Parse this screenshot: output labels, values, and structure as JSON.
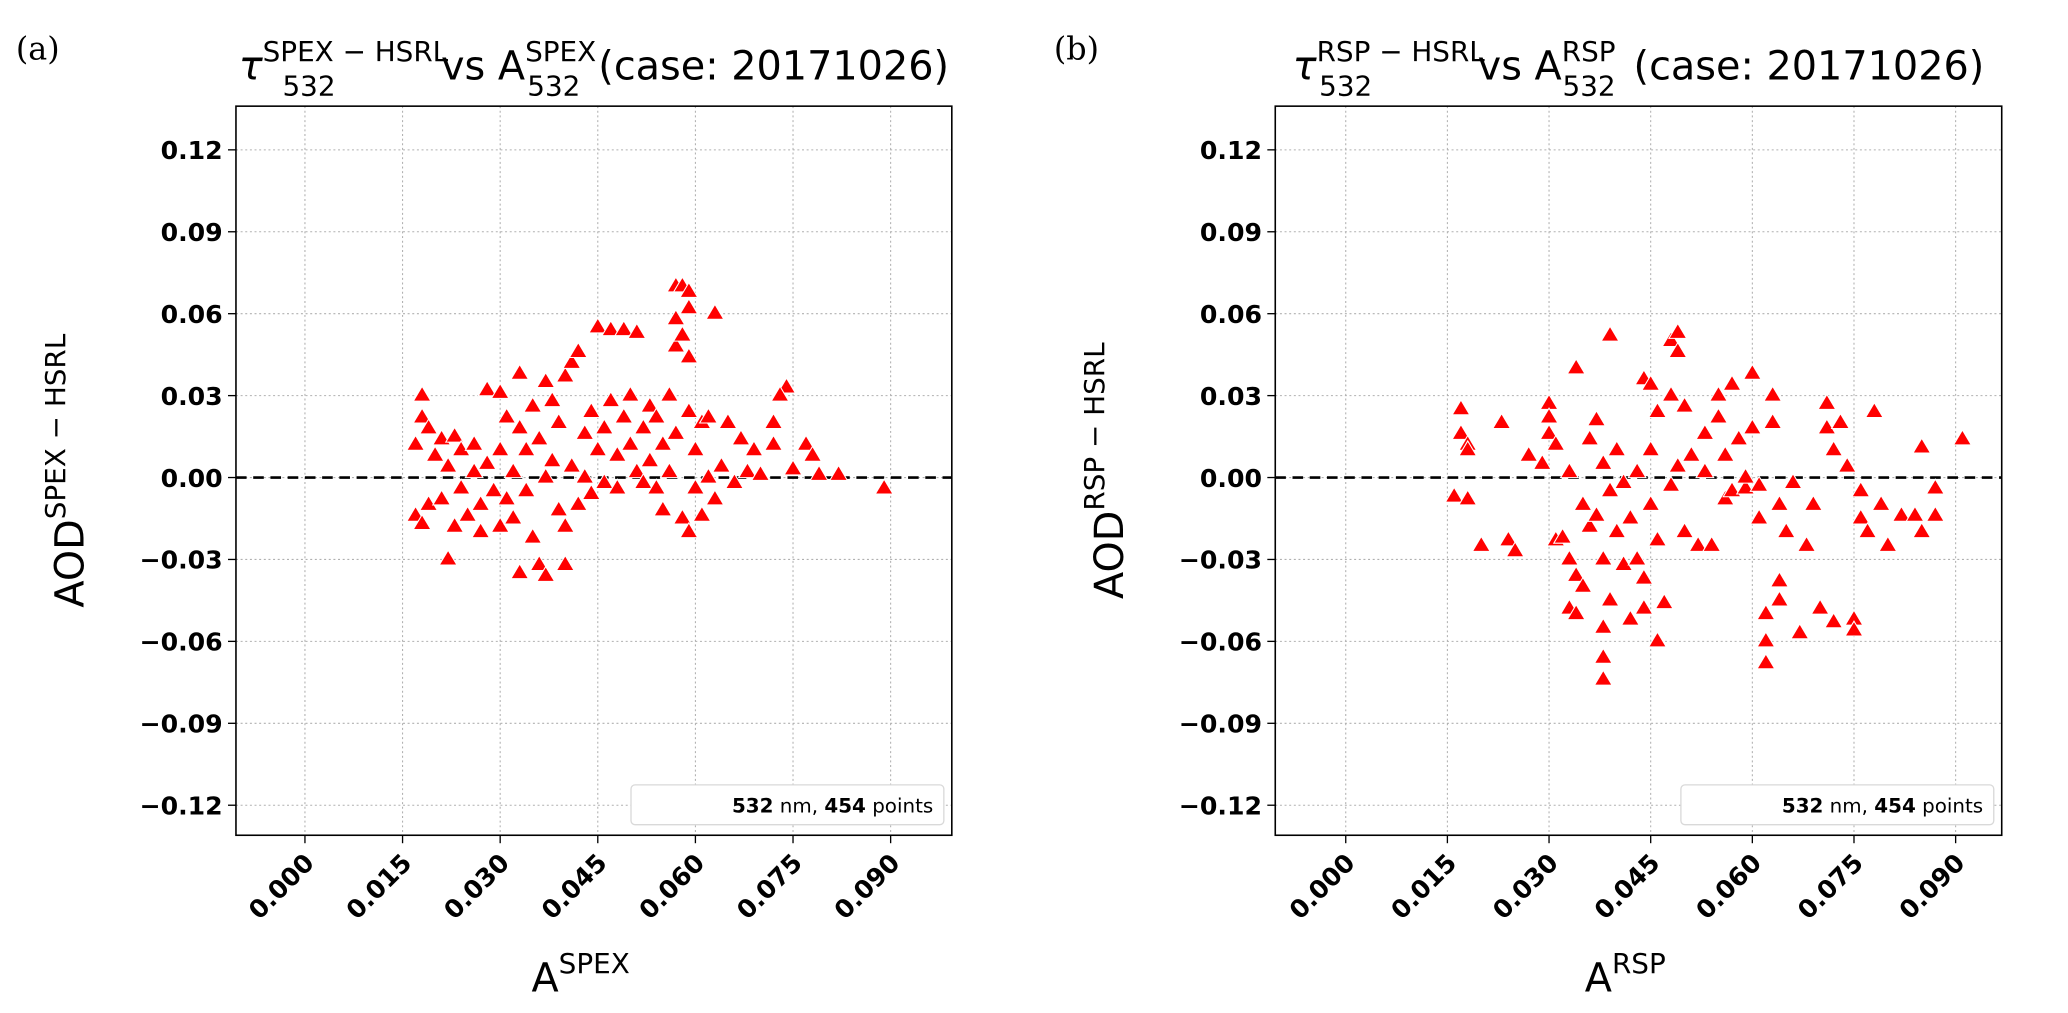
{
  "chart_data": [
    {
      "type": "scatter",
      "panel_label": "(a)",
      "title": {
        "tau": "τ",
        "tau_sub": "532",
        "tau_sup": "SPEX − HSRL",
        "vs": " vs A",
        "a_sub": "532",
        "a_sup": "SPEX",
        "case": " (case: 20171026)"
      },
      "xlabel": {
        "base": "A",
        "sup": "SPEX"
      },
      "ylabel": {
        "base": "AOD",
        "sup": "SPEX − HSRL"
      },
      "xlim": [
        -0.0106,
        0.0994
      ],
      "ylim": [
        -0.131,
        0.136
      ],
      "xticks": [
        "0.000",
        "0.015",
        "0.030",
        "0.045",
        "0.060",
        "0.075",
        "0.090"
      ],
      "yticks": [
        "−0.12",
        "−0.09",
        "−0.06",
        "−0.03",
        "0.00",
        "0.03",
        "0.06",
        "0.09",
        "0.12"
      ],
      "grid": true,
      "reference_line": {
        "y": 0,
        "style": "dashed",
        "color": "#000000"
      },
      "marker": "triangle-up",
      "color": "#ff0000",
      "legend": {
        "wavelength": "532",
        "nm_text": " nm, ",
        "count": "454",
        "points_text": " points",
        "placement": "lower-right"
      },
      "points": [
        [
          0.017,
          0.012
        ],
        [
          0.017,
          -0.014
        ],
        [
          0.018,
          0.03
        ],
        [
          0.018,
          0.022
        ],
        [
          0.019,
          0.018
        ],
        [
          0.019,
          -0.01
        ],
        [
          0.018,
          -0.017
        ],
        [
          0.02,
          0.008
        ],
        [
          0.021,
          -0.008
        ],
        [
          0.021,
          0.014
        ],
        [
          0.022,
          -0.03
        ],
        [
          0.022,
          0.004
        ],
        [
          0.023,
          0.015
        ],
        [
          0.023,
          -0.018
        ],
        [
          0.024,
          0.01
        ],
        [
          0.024,
          -0.004
        ],
        [
          0.025,
          -0.014
        ],
        [
          0.026,
          0.002
        ],
        [
          0.026,
          0.012
        ],
        [
          0.027,
          -0.01
        ],
        [
          0.027,
          -0.02
        ],
        [
          0.028,
          0.005
        ],
        [
          0.028,
          0.032
        ],
        [
          0.029,
          -0.005
        ],
        [
          0.03,
          0.031
        ],
        [
          0.03,
          0.01
        ],
        [
          0.03,
          -0.018
        ],
        [
          0.031,
          0.022
        ],
        [
          0.031,
          -0.008
        ],
        [
          0.032,
          0.002
        ],
        [
          0.032,
          -0.015
        ],
        [
          0.033,
          0.038
        ],
        [
          0.033,
          0.018
        ],
        [
          0.033,
          -0.035
        ],
        [
          0.034,
          0.01
        ],
        [
          0.034,
          -0.005
        ],
        [
          0.035,
          0.026
        ],
        [
          0.035,
          -0.022
        ],
        [
          0.036,
          -0.032
        ],
        [
          0.036,
          0.014
        ],
        [
          0.037,
          0.035
        ],
        [
          0.037,
          0.0
        ],
        [
          0.037,
          -0.036
        ],
        [
          0.038,
          0.028
        ],
        [
          0.038,
          0.006
        ],
        [
          0.039,
          -0.012
        ],
        [
          0.039,
          0.02
        ],
        [
          0.04,
          0.037
        ],
        [
          0.04,
          -0.018
        ],
        [
          0.04,
          -0.032
        ],
        [
          0.041,
          0.042
        ],
        [
          0.041,
          0.004
        ],
        [
          0.042,
          0.046
        ],
        [
          0.042,
          -0.01
        ],
        [
          0.043,
          0.016
        ],
        [
          0.043,
          0.0
        ],
        [
          0.044,
          0.024
        ],
        [
          0.044,
          -0.006
        ],
        [
          0.045,
          0.055
        ],
        [
          0.045,
          0.01
        ],
        [
          0.046,
          0.018
        ],
        [
          0.046,
          -0.002
        ],
        [
          0.047,
          0.054
        ],
        [
          0.047,
          0.028
        ],
        [
          0.048,
          0.008
        ],
        [
          0.048,
          -0.004
        ],
        [
          0.049,
          0.022
        ],
        [
          0.049,
          0.054
        ],
        [
          0.05,
          0.012
        ],
        [
          0.05,
          0.03
        ],
        [
          0.051,
          0.002
        ],
        [
          0.051,
          0.053
        ],
        [
          0.052,
          0.018
        ],
        [
          0.052,
          -0.002
        ],
        [
          0.053,
          0.026
        ],
        [
          0.053,
          0.006
        ],
        [
          0.054,
          0.022
        ],
        [
          0.054,
          -0.004
        ],
        [
          0.055,
          0.012
        ],
        [
          0.055,
          -0.012
        ],
        [
          0.056,
          0.03
        ],
        [
          0.056,
          0.002
        ],
        [
          0.057,
          0.07
        ],
        [
          0.057,
          0.058
        ],
        [
          0.057,
          0.048
        ],
        [
          0.057,
          0.016
        ],
        [
          0.058,
          0.07
        ],
        [
          0.058,
          0.052
        ],
        [
          0.058,
          -0.015
        ],
        [
          0.059,
          0.068
        ],
        [
          0.059,
          0.062
        ],
        [
          0.059,
          0.044
        ],
        [
          0.059,
          0.024
        ],
        [
          0.059,
          -0.02
        ],
        [
          0.06,
          0.01
        ],
        [
          0.06,
          -0.004
        ],
        [
          0.061,
          0.02
        ],
        [
          0.061,
          -0.014
        ],
        [
          0.062,
          0.0
        ],
        [
          0.062,
          0.022
        ],
        [
          0.063,
          0.06
        ],
        [
          0.063,
          -0.008
        ],
        [
          0.064,
          0.004
        ],
        [
          0.065,
          0.02
        ],
        [
          0.066,
          -0.002
        ],
        [
          0.067,
          0.014
        ],
        [
          0.068,
          0.002
        ],
        [
          0.069,
          0.01
        ],
        [
          0.07,
          0.001
        ],
        [
          0.072,
          0.02
        ],
        [
          0.072,
          0.012
        ],
        [
          0.074,
          0.033
        ],
        [
          0.073,
          0.03
        ],
        [
          0.075,
          0.003
        ],
        [
          0.077,
          0.012
        ],
        [
          0.078,
          0.008
        ],
        [
          0.079,
          0.001
        ],
        [
          0.082,
          0.001
        ],
        [
          0.089,
          -0.004
        ]
      ]
    },
    {
      "type": "scatter",
      "panel_label": "(b)",
      "title": {
        "tau": "τ",
        "tau_sub": "532",
        "tau_sup": "RSP − HSRL",
        "vs": " vs A",
        "a_sub": "532",
        "a_sup": "RSP",
        "case": " (case: 20171026)"
      },
      "xlabel": {
        "base": "A",
        "sup": "RSP"
      },
      "ylabel": {
        "base": "AOD",
        "sup": "RSP − HSRL"
      },
      "xlim": [
        -0.0104,
        0.0968
      ],
      "ylim": [
        -0.131,
        0.136
      ],
      "xticks": [
        "0.000",
        "0.015",
        "0.030",
        "0.045",
        "0.060",
        "0.075",
        "0.090"
      ],
      "yticks": [
        "−0.12",
        "−0.09",
        "−0.06",
        "−0.03",
        "0.00",
        "0.03",
        "0.06",
        "0.09",
        "0.12"
      ],
      "grid": true,
      "reference_line": {
        "y": 0,
        "style": "dashed",
        "color": "#000000"
      },
      "marker": "triangle-up",
      "color": "#ff0000",
      "legend": {
        "wavelength": "532",
        "nm_text": " nm, ",
        "count": "454",
        "points_text": " points",
        "placement": "lower-right"
      },
      "points": [
        [
          0.017,
          0.025
        ],
        [
          0.017,
          0.016
        ],
        [
          0.018,
          0.012
        ],
        [
          0.018,
          0.01
        ],
        [
          0.016,
          -0.007
        ],
        [
          0.018,
          -0.008
        ],
        [
          0.02,
          -0.025
        ],
        [
          0.023,
          0.02
        ],
        [
          0.024,
          -0.023
        ],
        [
          0.025,
          -0.027
        ],
        [
          0.027,
          0.008
        ],
        [
          0.029,
          0.005
        ],
        [
          0.03,
          0.027
        ],
        [
          0.03,
          0.022
        ],
        [
          0.03,
          0.016
        ],
        [
          0.031,
          0.012
        ],
        [
          0.031,
          -0.023
        ],
        [
          0.032,
          -0.022
        ],
        [
          0.033,
          0.002
        ],
        [
          0.033,
          -0.03
        ],
        [
          0.033,
          -0.048
        ],
        [
          0.034,
          0.04
        ],
        [
          0.034,
          -0.05
        ],
        [
          0.034,
          -0.036
        ],
        [
          0.035,
          -0.01
        ],
        [
          0.035,
          -0.04
        ],
        [
          0.036,
          0.014
        ],
        [
          0.036,
          -0.018
        ],
        [
          0.037,
          0.021
        ],
        [
          0.037,
          -0.014
        ],
        [
          0.038,
          0.005
        ],
        [
          0.038,
          -0.03
        ],
        [
          0.038,
          -0.055
        ],
        [
          0.038,
          -0.066
        ],
        [
          0.038,
          -0.074
        ],
        [
          0.039,
          0.052
        ],
        [
          0.039,
          -0.005
        ],
        [
          0.039,
          -0.045
        ],
        [
          0.04,
          -0.02
        ],
        [
          0.04,
          0.01
        ],
        [
          0.041,
          -0.002
        ],
        [
          0.041,
          -0.032
        ],
        [
          0.042,
          -0.015
        ],
        [
          0.042,
          -0.052
        ],
        [
          0.043,
          -0.03
        ],
        [
          0.043,
          0.002
        ],
        [
          0.044,
          0.036
        ],
        [
          0.044,
          -0.037
        ],
        [
          0.044,
          -0.048
        ],
        [
          0.045,
          0.034
        ],
        [
          0.045,
          0.01
        ],
        [
          0.045,
          -0.01
        ],
        [
          0.046,
          0.024
        ],
        [
          0.046,
          -0.023
        ],
        [
          0.046,
          -0.06
        ],
        [
          0.047,
          -0.046
        ],
        [
          0.048,
          0.05
        ],
        [
          0.048,
          0.03
        ],
        [
          0.048,
          -0.003
        ],
        [
          0.049,
          0.053
        ],
        [
          0.049,
          0.046
        ],
        [
          0.049,
          0.004
        ],
        [
          0.05,
          0.026
        ],
        [
          0.05,
          -0.02
        ],
        [
          0.051,
          0.008
        ],
        [
          0.052,
          -0.025
        ],
        [
          0.053,
          0.016
        ],
        [
          0.053,
          0.002
        ],
        [
          0.054,
          -0.025
        ],
        [
          0.055,
          0.03
        ],
        [
          0.055,
          0.022
        ],
        [
          0.056,
          0.008
        ],
        [
          0.056,
          -0.008
        ],
        [
          0.057,
          0.034
        ],
        [
          0.057,
          -0.005
        ],
        [
          0.058,
          0.014
        ],
        [
          0.059,
          -0.004
        ],
        [
          0.059,
          0.0
        ],
        [
          0.06,
          0.038
        ],
        [
          0.06,
          0.018
        ],
        [
          0.061,
          -0.003
        ],
        [
          0.061,
          -0.015
        ],
        [
          0.062,
          -0.05
        ],
        [
          0.062,
          -0.06
        ],
        [
          0.062,
          -0.068
        ],
        [
          0.063,
          0.03
        ],
        [
          0.063,
          0.02
        ],
        [
          0.064,
          -0.01
        ],
        [
          0.064,
          -0.038
        ],
        [
          0.064,
          -0.045
        ],
        [
          0.065,
          -0.02
        ],
        [
          0.066,
          -0.002
        ],
        [
          0.067,
          -0.057
        ],
        [
          0.068,
          -0.025
        ],
        [
          0.069,
          -0.01
        ],
        [
          0.07,
          -0.048
        ],
        [
          0.071,
          0.027
        ],
        [
          0.071,
          0.018
        ],
        [
          0.072,
          0.01
        ],
        [
          0.072,
          -0.053
        ],
        [
          0.073,
          0.02
        ],
        [
          0.074,
          0.004
        ],
        [
          0.075,
          -0.052
        ],
        [
          0.075,
          -0.056
        ],
        [
          0.076,
          -0.005
        ],
        [
          0.076,
          -0.015
        ],
        [
          0.077,
          -0.02
        ],
        [
          0.078,
          0.024
        ],
        [
          0.079,
          -0.01
        ],
        [
          0.08,
          -0.025
        ],
        [
          0.082,
          -0.014
        ],
        [
          0.084,
          -0.014
        ],
        [
          0.085,
          -0.02
        ],
        [
          0.085,
          0.011
        ],
        [
          0.087,
          -0.014
        ],
        [
          0.087,
          -0.004
        ],
        [
          0.091,
          0.014
        ]
      ]
    }
  ]
}
